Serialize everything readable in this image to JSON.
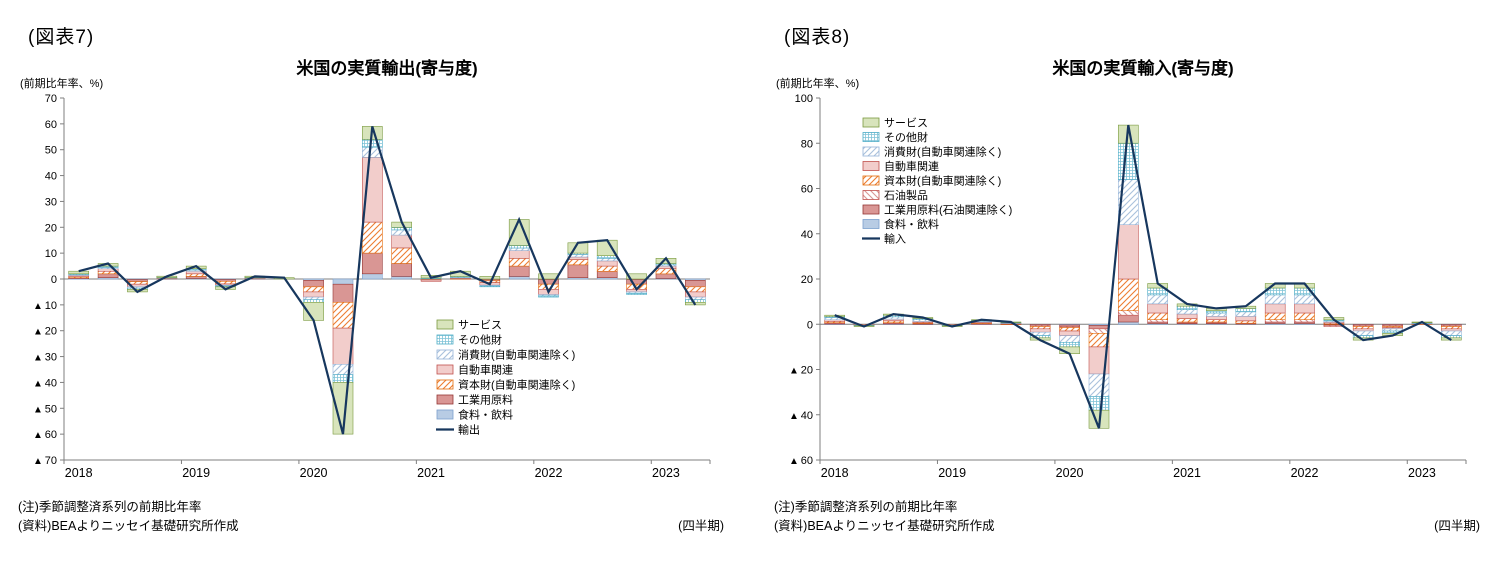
{
  "chart_data": [
    {
      "figure_label": "(図表7)",
      "title": "米国の実質輸出(寄与度)",
      "y_axis_unit": "(前期比年率、%)",
      "x_axis_unit": "(四半期)",
      "notes": [
        "(注)季節調整済系列の前期比年率",
        "(資料)BEAよりニッセイ基礎研究所作成"
      ],
      "type": "stacked-bar-line",
      "grid": false,
      "legend_position": "lower-center-right",
      "ylim": [
        -70,
        70
      ],
      "ytick_values": [
        70,
        60,
        50,
        40,
        30,
        20,
        10,
        0,
        -10,
        -20,
        -30,
        -40,
        -50,
        -60,
        -70
      ],
      "ytick_labels": [
        "70",
        "60",
        "50",
        "40",
        "30",
        "20",
        "10",
        "0",
        "▲ 10",
        "▲ 20",
        "▲ 30",
        "▲ 40",
        "▲ 50",
        "▲ 60",
        "▲ 70"
      ],
      "years": [
        {
          "label": "2018",
          "index": 0
        },
        {
          "label": "2019",
          "index": 4
        },
        {
          "label": "2020",
          "index": 8
        },
        {
          "label": "2021",
          "index": 12
        },
        {
          "label": "2022",
          "index": 16
        },
        {
          "label": "2023",
          "index": 20
        }
      ],
      "series": [
        {
          "name": "サービス",
          "pattern": "solid",
          "fill": "#D8E4BC",
          "stroke": "#7A9A3F",
          "values": [
            1,
            1,
            -1,
            0.5,
            1,
            -1,
            0.5,
            0.5,
            -7,
            -20,
            5,
            2,
            1,
            2,
            1,
            10,
            2,
            4,
            6,
            2,
            2,
            -1
          ]
        },
        {
          "name": "その他財",
          "pattern": "grid",
          "fill": "#FFFFFF",
          "hatch": "#7FC3D7",
          "stroke": "#4BACC6",
          "values": [
            0.3,
            0.5,
            -0.5,
            0.1,
            0.5,
            -0.3,
            0.1,
            0,
            -1,
            -3,
            3,
            1,
            0.2,
            0.3,
            -0.3,
            1,
            -0.5,
            0.5,
            1,
            -0.5,
            0.5,
            -1
          ]
        },
        {
          "name": "消費財(自動車関連除く)",
          "pattern": "diag-up",
          "fill": "#FFFFFF",
          "hatch": "#A9C1DC",
          "stroke": "#95B3D7",
          "values": [
            0.3,
            0.5,
            -0.5,
            0.1,
            0.5,
            -0.3,
            0.1,
            0,
            -1,
            -4,
            4,
            2,
            0.2,
            0.3,
            -0.3,
            1,
            -0.5,
            1,
            1,
            -0.5,
            0.5,
            -1
          ]
        },
        {
          "name": "自動車関連",
          "pattern": "solid",
          "fill": "#F2CDCB",
          "stroke": "#C0504D",
          "values": [
            0.5,
            1,
            -1,
            0.1,
            1,
            -0.5,
            0.1,
            0,
            -2,
            -14,
            25,
            5,
            -0.5,
            0.2,
            -1,
            3,
            -2,
            1,
            2,
            -1,
            1,
            -2
          ]
        },
        {
          "name": "資本財(自動車関連除く)",
          "pattern": "diag-up",
          "fill": "#FFFFFF",
          "hatch": "#ED7D31",
          "stroke": "#E26B0A",
          "values": [
            0.4,
            1,
            -1,
            0.1,
            1,
            -1,
            0.1,
            0,
            -2,
            -10,
            12,
            6,
            -0.2,
            0.1,
            -0.7,
            3,
            -2,
            2,
            2,
            -2,
            2,
            -2
          ]
        },
        {
          "name": "工業用原料",
          "pattern": "solid",
          "fill": "#D99694",
          "stroke": "#943634",
          "values": [
            0.4,
            1.5,
            -0.8,
            0.1,
            0.8,
            -0.7,
            0.1,
            0,
            -2.5,
            -7,
            8,
            5,
            -0.1,
            0.1,
            -0.6,
            4,
            -1.8,
            5,
            2.5,
            -1.8,
            1.8,
            -2.5
          ]
        },
        {
          "name": "食料・飲料",
          "pattern": "solid",
          "fill": "#B8CCE4",
          "stroke": "#7BA0CD",
          "values": [
            0.1,
            0.5,
            -0.2,
            0.1,
            0.2,
            -0.2,
            0.1,
            0,
            -0.5,
            -2,
            2,
            1,
            -0.1,
            0,
            -0.1,
            1,
            -0.2,
            0.5,
            0.5,
            -0.2,
            0.2,
            -0.5
          ]
        }
      ],
      "line": {
        "name": "輸出",
        "color": "#17375E",
        "values": [
          3,
          6,
          -5,
          1,
          5,
          -4,
          1,
          0.5,
          -16,
          -60,
          59,
          22,
          0.5,
          3,
          -2,
          23,
          -5,
          14,
          15,
          -4,
          8,
          -10
        ]
      }
    },
    {
      "figure_label": "(図表8)",
      "title": "米国の実質輸入(寄与度)",
      "y_axis_unit": "(前期比年率、%)",
      "x_axis_unit": "(四半期)",
      "notes": [
        "(注)季節調整済系列の前期比年率",
        "(資料)BEAよりニッセイ基礎研究所作成"
      ],
      "type": "stacked-bar-line",
      "grid": false,
      "legend_position": "upper-left",
      "ylim": [
        -60,
        100
      ],
      "ytick_values": [
        100,
        80,
        60,
        40,
        20,
        0,
        -20,
        -40,
        -60
      ],
      "ytick_labels": [
        "100",
        "80",
        "60",
        "40",
        "20",
        "0",
        "▲ 20",
        "▲ 40",
        "▲ 60"
      ],
      "years": [
        {
          "label": "2018",
          "index": 0
        },
        {
          "label": "2019",
          "index": 4
        },
        {
          "label": "2020",
          "index": 8
        },
        {
          "label": "2021",
          "index": 12
        },
        {
          "label": "2022",
          "index": 16
        },
        {
          "label": "2023",
          "index": 20
        }
      ],
      "series": [
        {
          "name": "サービス",
          "pattern": "solid",
          "fill": "#D8E4BC",
          "stroke": "#7A9A3F",
          "values": [
            0.5,
            -0.3,
            0.5,
            0.5,
            -0.3,
            0.3,
            0.2,
            -1,
            -3,
            -8,
            8,
            2,
            1,
            1,
            1,
            2,
            2,
            1,
            -1,
            -1,
            0.3,
            -1
          ]
        },
        {
          "name": "その他財",
          "pattern": "grid",
          "fill": "#FFFFFF",
          "hatch": "#7FC3D7",
          "stroke": "#4BACC6",
          "values": [
            0.5,
            -0.2,
            0.7,
            0.5,
            -0.2,
            0.3,
            0.2,
            -1,
            -2,
            -6,
            16,
            3,
            1.5,
            1,
            1.5,
            3,
            3,
            0.5,
            -1,
            -1,
            0.2,
            -1
          ]
        },
        {
          "name": "消費財(自動車関連除く)",
          "pattern": "diag-up",
          "fill": "#FFFFFF",
          "hatch": "#A9C1DC",
          "stroke": "#95B3D7",
          "values": [
            1,
            -0.2,
            1,
            0.7,
            -0.2,
            0.4,
            0.2,
            -1.5,
            -3,
            -10,
            20,
            4,
            2,
            1.5,
            2,
            4,
            4,
            0.5,
            -2,
            -1,
            0.2,
            -2
          ]
        },
        {
          "name": "自動車関連",
          "pattern": "solid",
          "fill": "#F2CDCB",
          "stroke": "#C0504D",
          "values": [
            0.7,
            -0.1,
            0.8,
            0.5,
            -0.1,
            0.4,
            0.2,
            -1.5,
            -2,
            -12,
            24,
            4,
            2,
            1.5,
            2,
            4,
            4,
            0.5,
            -1,
            -0.5,
            0.2,
            -1
          ]
        },
        {
          "name": "資本財(自動車関連除く)",
          "pattern": "diag-up",
          "fill": "#FFFFFF",
          "hatch": "#ED7D31",
          "stroke": "#E26B0A",
          "values": [
            0.6,
            -0.1,
            0.8,
            0.4,
            -0.1,
            0.3,
            0.1,
            -1,
            -1.5,
            -6,
            14,
            3,
            1.5,
            1,
            1,
            3,
            3,
            0.5,
            -1,
            -0.5,
            0.1,
            -1
          ]
        },
        {
          "name": "石油製品",
          "pattern": "diag-down",
          "fill": "#FFFFFF",
          "hatch": "#D99694",
          "stroke": "#C0504D",
          "values": [
            0.3,
            -0.05,
            0.3,
            0.2,
            -0.05,
            0.1,
            0.05,
            -0.5,
            -0.5,
            -2,
            2,
            1,
            0.4,
            0.4,
            0.2,
            1,
            1,
            -0.5,
            -0.5,
            -0.5,
            0,
            -0.5
          ]
        },
        {
          "name": "工業用原料(石油関連除く)",
          "pattern": "solid",
          "fill": "#D99694",
          "stroke": "#943634",
          "values": [
            0.3,
            -0.05,
            0.3,
            0.15,
            -0.05,
            0.15,
            0.05,
            -0.4,
            -0.7,
            -1.5,
            3,
            0.7,
            0.4,
            0.4,
            0.2,
            0.7,
            0.7,
            -0.3,
            -0.4,
            -0.4,
            0,
            -0.4
          ]
        },
        {
          "name": "食料・飲料",
          "pattern": "solid",
          "fill": "#B8CCE4",
          "stroke": "#7BA0CD",
          "values": [
            0.1,
            0,
            0.1,
            0.05,
            0,
            0.05,
            0,
            -0.1,
            -0.3,
            -0.5,
            1,
            0.3,
            0.2,
            0.2,
            0.1,
            0.3,
            0.3,
            -0.2,
            -0.1,
            -0.1,
            0,
            -0.1
          ]
        }
      ],
      "line": {
        "name": "輸入",
        "color": "#17375E",
        "values": [
          4,
          -1,
          4.5,
          3,
          -1,
          2,
          1,
          -7,
          -13,
          -46,
          88,
          18,
          9,
          7,
          8,
          18,
          18,
          2,
          -7,
          -5,
          1,
          -7
        ]
      }
    }
  ]
}
